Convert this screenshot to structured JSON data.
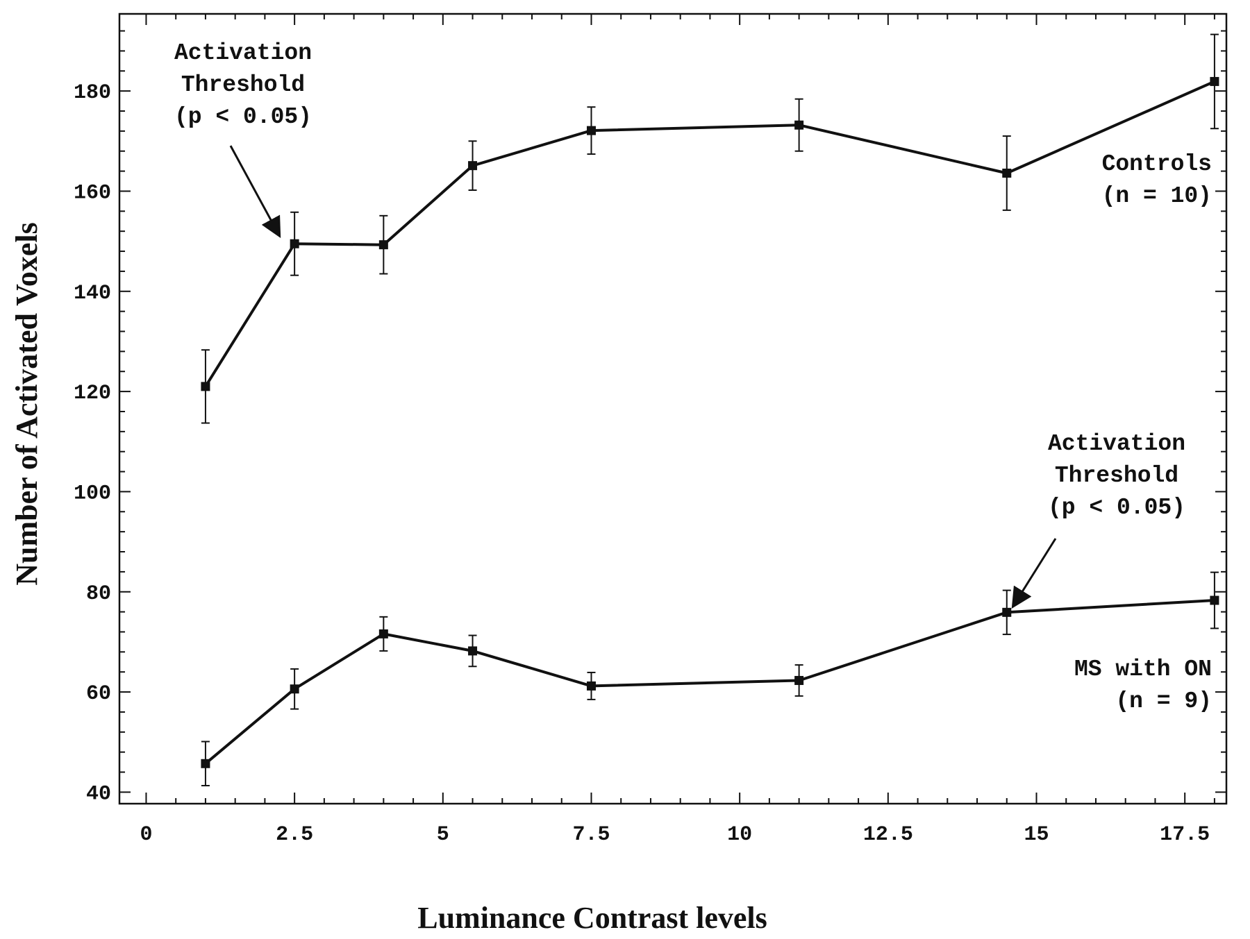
{
  "chart_data": {
    "type": "line",
    "title": "",
    "xlabel": "Luminance Contrast levels",
    "ylabel": "Number of Activated Voxels",
    "xlim": [
      -0.45,
      18.2
    ],
    "ylim": [
      37.7,
      195.4
    ],
    "xticks": [
      0,
      2.5,
      5,
      7.5,
      10,
      12.5,
      15,
      17.5
    ],
    "xtick_labels": [
      "0",
      "2.5",
      "5",
      "7.5",
      "10",
      "12.5",
      "15",
      "17.5"
    ],
    "yticks": [
      40,
      60,
      80,
      100,
      120,
      140,
      160,
      180
    ],
    "ytick_labels": [
      "40",
      "60",
      "80",
      "100",
      "120",
      "140",
      "160",
      "180"
    ],
    "grid": false,
    "series": [
      {
        "x": [
          1,
          2.5,
          4,
          5.5,
          7.5,
          11,
          14.5,
          18
        ],
        "y": [
          121,
          149.5,
          149.3,
          165.1,
          172.1,
          173.2,
          163.6,
          181.9
        ],
        "err": [
          7.3,
          6.3,
          5.8,
          4.9,
          4.7,
          5.2,
          7.4,
          9.4
        ]
      },
      {
        "x": [
          1,
          2.5,
          4,
          5.5,
          7.5,
          11,
          14.5,
          18
        ],
        "y": [
          45.7,
          60.6,
          71.6,
          68.2,
          61.2,
          62.3,
          75.9,
          78.3
        ],
        "err": [
          4.4,
          4.0,
          3.4,
          3.1,
          2.7,
          3.1,
          4.4,
          5.6
        ]
      }
    ],
    "annotations": [
      {
        "lines": [
          "Activation",
          "Threshold",
          "(p < 0.05)"
        ],
        "points_to": {
          "x": 2.25,
          "y": 151
        }
      },
      {
        "lines": [
          "Controls",
          "(n = 10)"
        ]
      },
      {
        "lines": [
          "Activation",
          "Threshold",
          "(p < 0.05)"
        ],
        "points_to": {
          "x": 14.6,
          "y": 77
        }
      },
      {
        "lines": [
          "MS with ON",
          "(n = 9)"
        ]
      }
    ]
  }
}
